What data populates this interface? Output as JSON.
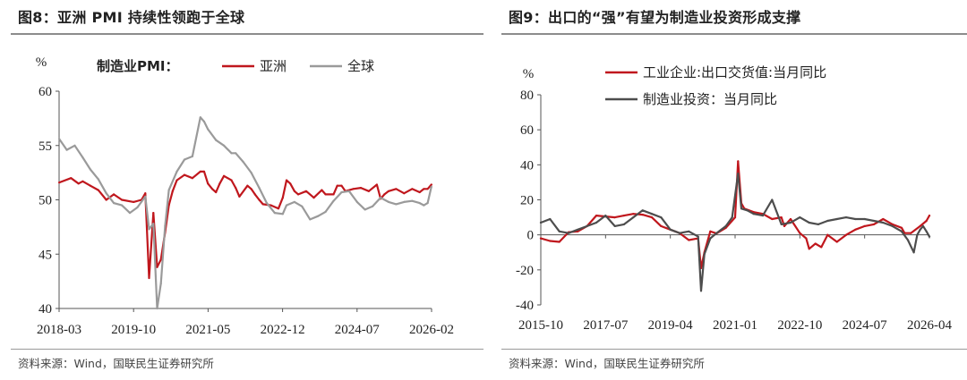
{
  "panels": {
    "left": {
      "title": "图8：亚洲 PMI 持续性领跑于全球",
      "source": "资料来源：Wind，国联民生证券研究所"
    },
    "right": {
      "title": "图9：出口的“强”有望为制造业投资形成支撑",
      "source": "资料来源：Wind，国联民生证券研究所"
    }
  },
  "colors": {
    "red": "#c0171d",
    "gray": "#9a9a9a",
    "darkgray": "#4d4d4d",
    "axis": "#555555"
  },
  "chart_data": [
    {
      "type": "line",
      "ylabel": "%",
      "legend_label": "制造业PMI：",
      "legend_position": "top",
      "ylim": [
        40,
        60
      ],
      "yticks": [
        "40",
        "45",
        "50",
        "55",
        "60"
      ],
      "xlim": [
        2018.1667,
        2026.0833
      ],
      "xticks": [
        {
          "label": "2018-03",
          "x": 2018.1667
        },
        {
          "label": "2019-10",
          "x": 2019.75
        },
        {
          "label": "2021-05",
          "x": 2021.3333
        },
        {
          "label": "2022-12",
          "x": 2022.9167
        },
        {
          "label": "2024-07",
          "x": 2024.5
        },
        {
          "label": "2026-02",
          "x": 2026.0833
        }
      ],
      "grid": false,
      "series": [
        {
          "name": "亚洲",
          "color": "#c0171d",
          "x": [
            2018.17,
            2018.42,
            2018.58,
            2018.67,
            2018.83,
            2019.0,
            2019.17,
            2019.33,
            2019.5,
            2019.75,
            2019.92,
            2020.0,
            2020.08,
            2020.17,
            2020.25,
            2020.33,
            2020.42,
            2020.5,
            2020.58,
            2020.67,
            2020.83,
            2021.0,
            2021.17,
            2021.25,
            2021.33,
            2021.42,
            2021.5,
            2021.58,
            2021.67,
            2021.83,
            2021.92,
            2022.0,
            2022.17,
            2022.25,
            2022.33,
            2022.42,
            2022.5,
            2022.67,
            2022.83,
            2022.92,
            2023.0,
            2023.08,
            2023.17,
            2023.25,
            2023.42,
            2023.58,
            2023.75,
            2023.83,
            2024.0,
            2024.08,
            2024.17,
            2024.25,
            2024.42,
            2024.58,
            2024.75,
            2024.92,
            2025.0,
            2025.08,
            2025.17,
            2025.33,
            2025.5,
            2025.67,
            2025.83,
            2025.92,
            2026.0,
            2026.08
          ],
          "values": [
            51.6,
            52.0,
            51.5,
            51.7,
            51.3,
            50.9,
            50.0,
            50.5,
            50.0,
            49.8,
            50.0,
            50.6,
            42.8,
            48.8,
            43.8,
            44.5,
            47.0,
            49.5,
            50.8,
            51.8,
            52.3,
            52.0,
            52.6,
            52.6,
            51.5,
            51.0,
            50.7,
            51.5,
            52.2,
            51.8,
            51.1,
            50.3,
            51.3,
            51.0,
            50.5,
            50.0,
            49.6,
            49.5,
            49.2,
            50.2,
            51.8,
            51.5,
            50.8,
            50.5,
            50.8,
            50.2,
            50.9,
            50.5,
            50.5,
            51.3,
            51.3,
            50.8,
            51.0,
            51.1,
            50.8,
            51.4,
            50.1,
            50.5,
            50.8,
            51.0,
            50.6,
            51.0,
            50.7,
            51.0,
            51.0,
            51.4
          ]
        },
        {
          "name": "全球",
          "color": "#9a9a9a",
          "x": [
            2018.17,
            2018.33,
            2018.5,
            2018.67,
            2018.83,
            2019.0,
            2019.17,
            2019.33,
            2019.5,
            2019.67,
            2019.83,
            2020.0,
            2020.08,
            2020.17,
            2020.25,
            2020.33,
            2020.42,
            2020.5,
            2020.67,
            2020.83,
            2021.0,
            2021.17,
            2021.25,
            2021.33,
            2021.5,
            2021.67,
            2021.83,
            2021.92,
            2022.08,
            2022.25,
            2022.42,
            2022.58,
            2022.75,
            2022.92,
            2023.0,
            2023.17,
            2023.33,
            2023.5,
            2023.67,
            2023.83,
            2024.0,
            2024.17,
            2024.33,
            2024.5,
            2024.67,
            2024.83,
            2025.0,
            2025.17,
            2025.33,
            2025.5,
            2025.67,
            2025.83,
            2025.92,
            2026.0,
            2026.08
          ],
          "values": [
            55.6,
            54.6,
            55.0,
            53.9,
            52.8,
            51.9,
            50.6,
            49.7,
            49.5,
            48.8,
            49.3,
            50.3,
            47.3,
            47.8,
            40.0,
            42.3,
            47.6,
            50.9,
            52.6,
            53.7,
            54.0,
            57.6,
            57.2,
            56.5,
            55.5,
            55.0,
            54.3,
            54.3,
            53.5,
            52.5,
            51.1,
            49.7,
            48.8,
            48.7,
            49.5,
            49.8,
            49.4,
            48.2,
            48.5,
            48.9,
            49.9,
            50.7,
            50.8,
            49.8,
            49.1,
            49.4,
            50.2,
            49.8,
            49.6,
            49.8,
            49.9,
            49.7,
            49.5,
            49.7,
            51.2
          ]
        }
      ]
    },
    {
      "type": "line",
      "ylabel": "%",
      "legend_position": "top",
      "ylim": [
        -40,
        80
      ],
      "yticks": [
        "-40",
        "-20",
        "0",
        "20",
        "40",
        "60",
        "80"
      ],
      "xlim": [
        2015.75,
        2026.25
      ],
      "xticks": [
        {
          "label": "2015-10",
          "x": 2015.75
        },
        {
          "label": "2017-07",
          "x": 2017.5
        },
        {
          "label": "2019-04",
          "x": 2019.25
        },
        {
          "label": "2021-01",
          "x": 2021.0
        },
        {
          "label": "2022-10",
          "x": 2022.75
        },
        {
          "label": "2024-07",
          "x": 2024.5
        },
        {
          "label": "2026-04",
          "x": 2026.25
        }
      ],
      "grid": false,
      "series": [
        {
          "name": "工业企业:出口交货值:当月同比",
          "color": "#c0171d",
          "x": [
            2015.75,
            2016.0,
            2016.25,
            2016.5,
            2016.75,
            2017.0,
            2017.25,
            2017.5,
            2017.75,
            2018.0,
            2018.25,
            2018.5,
            2018.75,
            2019.0,
            2019.25,
            2019.5,
            2019.75,
            2020.0,
            2020.08,
            2020.17,
            2020.33,
            2020.5,
            2020.75,
            2021.0,
            2021.08,
            2021.17,
            2021.25,
            2021.5,
            2021.75,
            2022.0,
            2022.25,
            2022.33,
            2022.5,
            2022.75,
            2022.92,
            2023.0,
            2023.17,
            2023.33,
            2023.5,
            2023.75,
            2024.0,
            2024.25,
            2024.5,
            2024.75,
            2025.0,
            2025.25,
            2025.5,
            2025.58,
            2025.75,
            2026.0,
            2026.17,
            2026.25
          ],
          "values": [
            -2,
            -3.5,
            -4,
            1.5,
            2,
            5,
            11,
            10.5,
            10,
            11,
            12,
            11.5,
            10,
            5,
            3,
            1,
            -3,
            -2,
            -19,
            -10,
            2,
            0.8,
            4,
            10,
            42,
            18,
            15,
            13,
            12,
            9,
            10,
            5,
            9,
            1,
            -2,
            -8,
            -5,
            -7,
            0,
            -4,
            0,
            3,
            5,
            6,
            9,
            6,
            4,
            1,
            1,
            5,
            8,
            11
          ]
        },
        {
          "name": "制造业投资：当月同比",
          "color": "#4d4d4d",
          "x": [
            2015.75,
            2016.0,
            2016.25,
            2016.5,
            2016.75,
            2017.0,
            2017.25,
            2017.5,
            2017.75,
            2018.0,
            2018.25,
            2018.5,
            2018.75,
            2019.0,
            2019.25,
            2019.5,
            2019.75,
            2020.0,
            2020.08,
            2020.17,
            2020.33,
            2020.5,
            2020.75,
            2020.92,
            2021.08,
            2021.17,
            2021.33,
            2021.5,
            2021.75,
            2022.0,
            2022.25,
            2022.5,
            2022.75,
            2023.0,
            2023.25,
            2023.5,
            2023.75,
            2024.0,
            2024.25,
            2024.5,
            2024.75,
            2025.0,
            2025.25,
            2025.5,
            2025.67,
            2025.83,
            2025.92,
            2026.0,
            2026.08,
            2026.17,
            2026.25
          ],
          "values": [
            7,
            9,
            2,
            1,
            3,
            5,
            7,
            11,
            5,
            6,
            10,
            14,
            12,
            10,
            3,
            1,
            2,
            -1,
            -32,
            -11,
            -2,
            1,
            5,
            10,
            35,
            15,
            14,
            12,
            11,
            20,
            6,
            7,
            10,
            7,
            6,
            8,
            9,
            10,
            9,
            9,
            8,
            7,
            5,
            2,
            -3,
            -10,
            0,
            3,
            5,
            2,
            -1
          ]
        }
      ]
    }
  ]
}
